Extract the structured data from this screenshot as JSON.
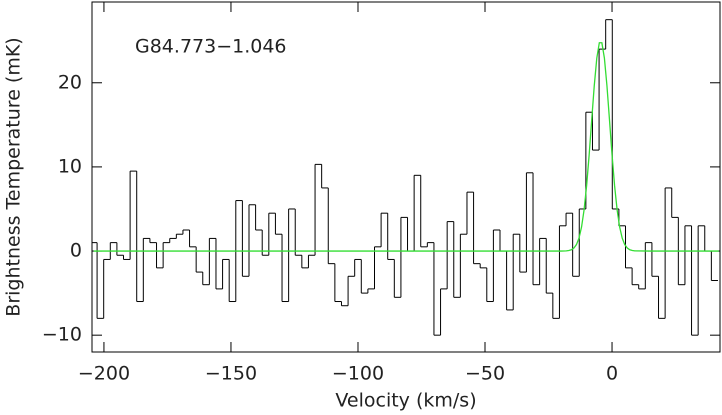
{
  "chart_data": {
    "type": "step",
    "xlabel": "Velocity (km/s)",
    "ylabel": "Brightness Temperature (mK)",
    "annotation": "G84.773−1.046",
    "xlim": [
      -204.7,
      42.5
    ],
    "ylim": [
      -12,
      29.6
    ],
    "xticks": [
      {
        "value": -200,
        "label": "−200"
      },
      {
        "value": -150,
        "label": "−150"
      },
      {
        "value": -100,
        "label": "−100"
      },
      {
        "value": -50,
        "label": "−50"
      },
      0
    ],
    "yticks": [
      {
        "value": -10,
        "label": "−10"
      },
      0,
      10,
      20
    ],
    "channel_width": 2.6,
    "x": [
      -204,
      -201.4,
      -198.8,
      -196.2,
      -193.6,
      -191,
      -188.4,
      -185.8,
      -183.2,
      -180.6,
      -178,
      -175.4,
      -172.8,
      -170.2,
      -167.6,
      -165,
      -162.4,
      -159.8,
      -157.2,
      -154.6,
      -152,
      -149.4,
      -146.8,
      -144.2,
      -141.6,
      -139,
      -136.4,
      -133.8,
      -131.2,
      -128.6,
      -126,
      -123.4,
      -120.8,
      -118.2,
      -115.6,
      -113,
      -110.4,
      -107.8,
      -105.2,
      -102.6,
      -100,
      -97.4,
      -94.8,
      -92.2,
      -89.6,
      -87,
      -84.4,
      -81.8,
      -79.2,
      -76.6,
      -74,
      -71.4,
      -68.8,
      -66.2,
      -63.6,
      -61,
      -58.4,
      -55.8,
      -53.2,
      -50.6,
      -48,
      -45.4,
      -42.8,
      -40.2,
      -37.6,
      -35,
      -32.4,
      -29.8,
      -27.2,
      -24.6,
      -22,
      -19.4,
      -16.8,
      -14.2,
      -11.6,
      -9,
      -6.4,
      -3.8,
      -1.2,
      1.4,
      4,
      6.6,
      9.2,
      11.8,
      14.4,
      17,
      19.6,
      22.2,
      24.8,
      27.4,
      30,
      32.6,
      35.2,
      37.8,
      40.4
    ],
    "series": [
      {
        "name": "spectrum",
        "color": "#000000",
        "values": [
          1,
          -8,
          -1,
          1,
          -0.5,
          -1,
          9.5,
          -6,
          1.5,
          1,
          -2,
          1,
          1.5,
          2,
          2.5,
          0.5,
          -2.5,
          -4,
          1.5,
          -4.5,
          -1,
          -6,
          6,
          -3,
          5.5,
          2.5,
          -0.5,
          4.5,
          2,
          -6,
          5,
          -0.5,
          -2,
          -0.5,
          10.3,
          7.5,
          -1.5,
          -6,
          -6.5,
          -3,
          -1,
          -5,
          -4.5,
          0.5,
          4.5,
          -1,
          -5.5,
          4,
          0,
          9,
          0.5,
          1,
          -10,
          -4.5,
          3.5,
          -5.5,
          2,
          7,
          -1.5,
          -2,
          -6,
          2.5,
          0,
          -7,
          2,
          -2.5,
          9.3,
          -4,
          1.5,
          -5,
          -8,
          3,
          4.5,
          -3,
          5,
          16.5,
          12,
          24,
          27.5,
          5,
          3,
          -2,
          -4,
          -4.5,
          1,
          -3,
          -8,
          7.5,
          4,
          -4,
          3,
          -10,
          3,
          0,
          -3.5
        ]
      },
      {
        "name": "fit",
        "color": "#33dd33",
        "x": [
          -204,
          -30,
          -20,
          -18,
          -17,
          -16,
          -15,
          -14,
          -13,
          -12,
          -11,
          -10,
          -9,
          -8,
          -7,
          -6,
          -5,
          -4,
          -3,
          -2,
          -1,
          0,
          1,
          2,
          3,
          4,
          5,
          6,
          7,
          8,
          9,
          15,
          42
        ],
        "values": [
          0,
          0,
          0,
          0.02,
          0.06,
          0.15,
          0.36,
          0.77,
          1.54,
          2.85,
          4.9,
          7.78,
          11.45,
          15.58,
          19.64,
          22.92,
          24.76,
          24.76,
          22.92,
          19.64,
          15.58,
          11.45,
          7.78,
          4.9,
          2.85,
          1.54,
          0.77,
          0.36,
          0.15,
          0.06,
          0.02,
          0,
          0
        ]
      }
    ]
  }
}
